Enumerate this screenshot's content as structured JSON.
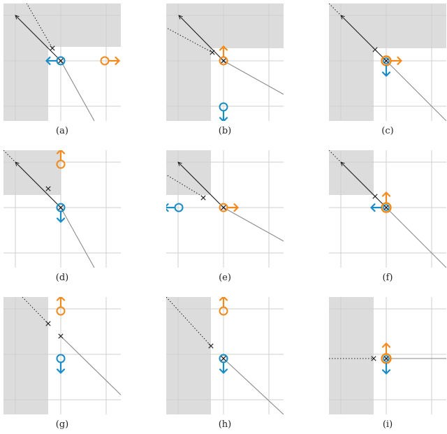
{
  "colors": {
    "blocked_region": "#dcdcdc",
    "grid": "#cfcfcf",
    "trajectory_solid": "#1a1a1a",
    "trajectory_continuation": "#8a8a8a",
    "marker": "#222222",
    "orange": "#f28a1d",
    "blue": "#1a8bc4"
  },
  "panels": [
    {
      "label": "(a)"
    },
    {
      "label": "(b)"
    },
    {
      "label": "(c)"
    },
    {
      "label": "(d)"
    },
    {
      "label": "(e)"
    },
    {
      "label": "(f)"
    },
    {
      "label": "(g)"
    },
    {
      "label": "(h)"
    },
    {
      "label": "(i)"
    }
  ]
}
